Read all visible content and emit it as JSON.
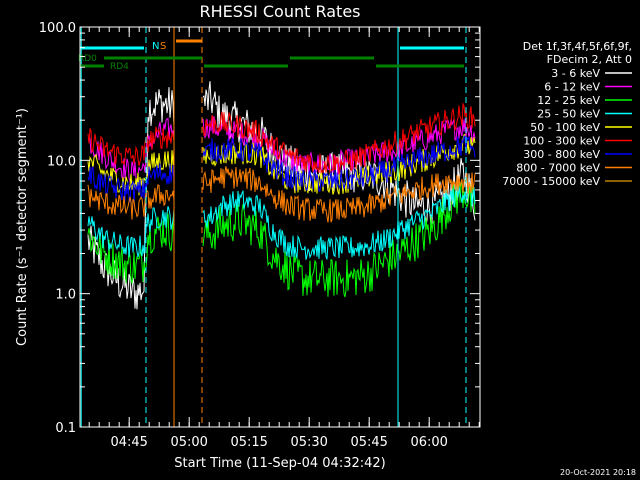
{
  "chart_data": {
    "type": "line",
    "title": "RHESSI Count Rates",
    "xlabel": "Start Time (11-Sep-04 04:32:42)",
    "ylabel": "Count Rate (s⁻¹ detector segment⁻¹)",
    "y_scale": "log",
    "ylim": [
      0.1,
      100.0
    ],
    "y_ticks": [
      "0.1",
      "1.0",
      "10.0",
      "100.0"
    ],
    "x_ticks": [
      "04:45",
      "05:00",
      "05:15",
      "05:30",
      "05:45",
      "06:00"
    ],
    "xlim_minutes_after_0432": [
      0,
      100
    ],
    "legend_header": [
      "Det 1f,3f,4f,5f,6f,9f,",
      "FDecim 2, Att 0"
    ],
    "series": [
      {
        "name": "3 - 6 keV",
        "color": "#ffffff",
        "points": [
          [
            2,
            2.5
          ],
          [
            6,
            1.6
          ],
          [
            10,
            1.2
          ],
          [
            14,
            1.0
          ],
          [
            16,
            1.1
          ],
          [
            17,
            25
          ],
          [
            20,
            27
          ],
          [
            22,
            26
          ],
          [
            23.5,
            25
          ],
          [
            33,
            28
          ],
          [
            35,
            22
          ],
          [
            40,
            19
          ],
          [
            45,
            16
          ],
          [
            48,
            12
          ],
          [
            52,
            9.5
          ],
          [
            56,
            8.2
          ],
          [
            60,
            8.0
          ],
          [
            64,
            8.2
          ],
          [
            68,
            8.0
          ],
          [
            72,
            7.8
          ],
          [
            76,
            7.0
          ],
          [
            80,
            5.5
          ],
          [
            84,
            4.5
          ],
          [
            88,
            4.5
          ],
          [
            92,
            5.5
          ],
          [
            96,
            8.0
          ],
          [
            99,
            4.5
          ]
        ]
      },
      {
        "name": "6 - 12 keV",
        "color": "#ff00ff",
        "points": [
          [
            2,
            14
          ],
          [
            6,
            11
          ],
          [
            10,
            9
          ],
          [
            14,
            8
          ],
          [
            16,
            9
          ],
          [
            17,
            13
          ],
          [
            20,
            16
          ],
          [
            22,
            17
          ],
          [
            23.5,
            17
          ],
          [
            33,
            18
          ],
          [
            35,
            17
          ],
          [
            40,
            16
          ],
          [
            45,
            15
          ],
          [
            48,
            12
          ],
          [
            52,
            10
          ],
          [
            56,
            9.2
          ],
          [
            60,
            9.3
          ],
          [
            64,
            9.5
          ],
          [
            68,
            10
          ],
          [
            72,
            10.5
          ],
          [
            76,
            11.5
          ],
          [
            80,
            12
          ],
          [
            84,
            13.5
          ],
          [
            88,
            15
          ],
          [
            92,
            17
          ],
          [
            96,
            18
          ],
          [
            99,
            16
          ]
        ]
      },
      {
        "name": "12 - 25 keV",
        "color": "#00ff00",
        "points": [
          [
            2,
            2.8
          ],
          [
            6,
            2.0
          ],
          [
            10,
            1.7
          ],
          [
            14,
            1.6
          ],
          [
            16,
            1.7
          ],
          [
            17,
            2.8
          ],
          [
            20,
            3.0
          ],
          [
            22,
            3.0
          ],
          [
            23.5,
            2.8
          ],
          [
            33,
            2.8
          ],
          [
            35,
            3.2
          ],
          [
            40,
            3.5
          ],
          [
            45,
            3.0
          ],
          [
            48,
            2.0
          ],
          [
            52,
            1.5
          ],
          [
            56,
            1.3
          ],
          [
            60,
            1.3
          ],
          [
            64,
            1.3
          ],
          [
            68,
            1.3
          ],
          [
            72,
            1.4
          ],
          [
            76,
            1.7
          ],
          [
            80,
            2.0
          ],
          [
            84,
            2.5
          ],
          [
            88,
            3.0
          ],
          [
            92,
            4.5
          ],
          [
            96,
            6.0
          ],
          [
            99,
            4.0
          ]
        ]
      },
      {
        "name": "25 - 50 keV",
        "color": "#00ffff",
        "points": [
          [
            2,
            3.5
          ],
          [
            6,
            2.6
          ],
          [
            10,
            2.3
          ],
          [
            14,
            2.2
          ],
          [
            16,
            2.3
          ],
          [
            17,
            3.5
          ],
          [
            20,
            3.8
          ],
          [
            22,
            3.8
          ],
          [
            23.5,
            3.6
          ],
          [
            33,
            3.8
          ],
          [
            35,
            4.5
          ],
          [
            40,
            5.0
          ],
          [
            45,
            4.5
          ],
          [
            48,
            3.0
          ],
          [
            52,
            2.3
          ],
          [
            56,
            2.2
          ],
          [
            60,
            2.2
          ],
          [
            64,
            2.2
          ],
          [
            68,
            2.2
          ],
          [
            72,
            2.3
          ],
          [
            76,
            2.5
          ],
          [
            80,
            3.0
          ],
          [
            84,
            3.5
          ],
          [
            88,
            4.0
          ],
          [
            92,
            5.0
          ],
          [
            96,
            6.0
          ],
          [
            99,
            5.0
          ]
        ]
      },
      {
        "name": "50 - 100 keV",
        "color": "#ffff00",
        "points": [
          [
            2,
            10
          ],
          [
            6,
            8
          ],
          [
            10,
            7
          ],
          [
            14,
            6.5
          ],
          [
            16,
            7
          ],
          [
            17,
            9
          ],
          [
            20,
            10
          ],
          [
            22,
            10
          ],
          [
            23.5,
            10
          ],
          [
            33,
            11
          ],
          [
            35,
            11
          ],
          [
            40,
            11.5
          ],
          [
            45,
            11
          ],
          [
            48,
            8.5
          ],
          [
            52,
            7
          ],
          [
            56,
            6.8
          ],
          [
            60,
            6.8
          ],
          [
            64,
            6.8
          ],
          [
            68,
            7
          ],
          [
            72,
            7.5
          ],
          [
            76,
            8
          ],
          [
            80,
            8.5
          ],
          [
            84,
            9.5
          ],
          [
            88,
            10.5
          ],
          [
            92,
            12
          ],
          [
            96,
            13
          ],
          [
            99,
            12
          ]
        ]
      },
      {
        "name": "100 - 300 keV",
        "color": "#ff0000",
        "points": [
          [
            2,
            15
          ],
          [
            6,
            12
          ],
          [
            10,
            11
          ],
          [
            14,
            10.5
          ],
          [
            16,
            11
          ],
          [
            17,
            14
          ],
          [
            20,
            15
          ],
          [
            22,
            15
          ],
          [
            23.5,
            15
          ],
          [
            33,
            19
          ],
          [
            35,
            19
          ],
          [
            40,
            18
          ],
          [
            45,
            16
          ],
          [
            48,
            13
          ],
          [
            52,
            11
          ],
          [
            56,
            10
          ],
          [
            60,
            9.5
          ],
          [
            64,
            9.5
          ],
          [
            68,
            10
          ],
          [
            72,
            11
          ],
          [
            76,
            12.5
          ],
          [
            80,
            14
          ],
          [
            84,
            16
          ],
          [
            88,
            18
          ],
          [
            92,
            20
          ],
          [
            96,
            22
          ],
          [
            99,
            20
          ]
        ]
      },
      {
        "name": "300 - 800 keV",
        "color": "#0000ff",
        "points": [
          [
            2,
            8
          ],
          [
            6,
            6.5
          ],
          [
            10,
            6
          ],
          [
            14,
            5.8
          ],
          [
            16,
            6
          ],
          [
            17,
            7.5
          ],
          [
            20,
            8
          ],
          [
            22,
            8
          ],
          [
            23.5,
            8
          ],
          [
            33,
            12
          ],
          [
            35,
            12
          ],
          [
            40,
            12
          ],
          [
            45,
            11
          ],
          [
            48,
            9
          ],
          [
            52,
            7.5
          ],
          [
            56,
            7
          ],
          [
            60,
            7
          ],
          [
            64,
            7
          ],
          [
            68,
            7.2
          ],
          [
            72,
            7.5
          ],
          [
            76,
            8.2
          ],
          [
            80,
            9
          ],
          [
            84,
            10
          ],
          [
            88,
            11
          ],
          [
            92,
            12
          ],
          [
            96,
            13
          ],
          [
            99,
            12
          ]
        ]
      },
      {
        "name": "800 - 7000 keV",
        "color": "#ff8000",
        "points": [
          [
            2,
            5.5
          ],
          [
            6,
            4.8
          ],
          [
            10,
            4.5
          ],
          [
            14,
            4.3
          ],
          [
            16,
            4.5
          ],
          [
            17,
            5
          ],
          [
            20,
            5.5
          ],
          [
            22,
            5.5
          ],
          [
            23.5,
            5.5
          ],
          [
            33,
            7
          ],
          [
            35,
            7.5
          ],
          [
            40,
            7.5
          ],
          [
            45,
            6.8
          ],
          [
            48,
            5.5
          ],
          [
            52,
            4.6
          ],
          [
            56,
            4.3
          ],
          [
            60,
            4.2
          ],
          [
            64,
            4.2
          ],
          [
            68,
            4.3
          ],
          [
            72,
            4.5
          ],
          [
            76,
            5
          ],
          [
            80,
            5.5
          ],
          [
            84,
            6
          ],
          [
            88,
            6.5
          ],
          [
            92,
            7
          ],
          [
            96,
            7
          ],
          [
            99,
            6.5
          ]
        ]
      },
      {
        "name": "7000 - 15000 keV",
        "color": "#c08000",
        "points": []
      }
    ],
    "annotations": {
      "lines": [
        {
          "label": "N",
          "color": "#00ffff",
          "style": "dashed",
          "x": 16.5
        },
        {
          "label": "",
          "color": "#00ffff",
          "style": "solid",
          "x": 0.3
        },
        {
          "label": "S",
          "color": "#ff8000",
          "style": "solid",
          "x": 23.5
        },
        {
          "label": "",
          "color": "#ff8000",
          "style": "dashed",
          "x": 30.5
        },
        {
          "label": "",
          "color": "#00ffff",
          "style": "solid",
          "x": 79.5
        },
        {
          "label": "",
          "color": "#00ffff",
          "style": "dashed",
          "x": 96.5
        }
      ],
      "bars": [
        {
          "color": "#00ffff",
          "x": [
            0,
            16
          ],
          "level": 0
        },
        {
          "color": "#ff8000",
          "x": [
            24,
            30.5
          ],
          "level": 1
        },
        {
          "color": "#00ffff",
          "x": [
            80,
            96
          ],
          "level": 0
        },
        {
          "color": "#008000",
          "x": [
            6,
            30.5
          ],
          "level": 2
        },
        {
          "color": "#008000",
          "x": [
            31,
            52
          ],
          "level": 3
        },
        {
          "color": "#008000",
          "x": [
            52.5,
            73.5
          ],
          "level": 2
        },
        {
          "color": "#008000",
          "x": [
            74,
            96
          ],
          "level": 3
        },
        {
          "color": "#008000",
          "x": [
            0,
            6
          ],
          "level": 3
        }
      ],
      "labels": [
        {
          "text": "RD0",
          "color": "#008000"
        },
        {
          "text": "RD4",
          "color": "#008000"
        }
      ]
    }
  },
  "footer": {
    "date": "20-Oct-2021 20:18"
  }
}
